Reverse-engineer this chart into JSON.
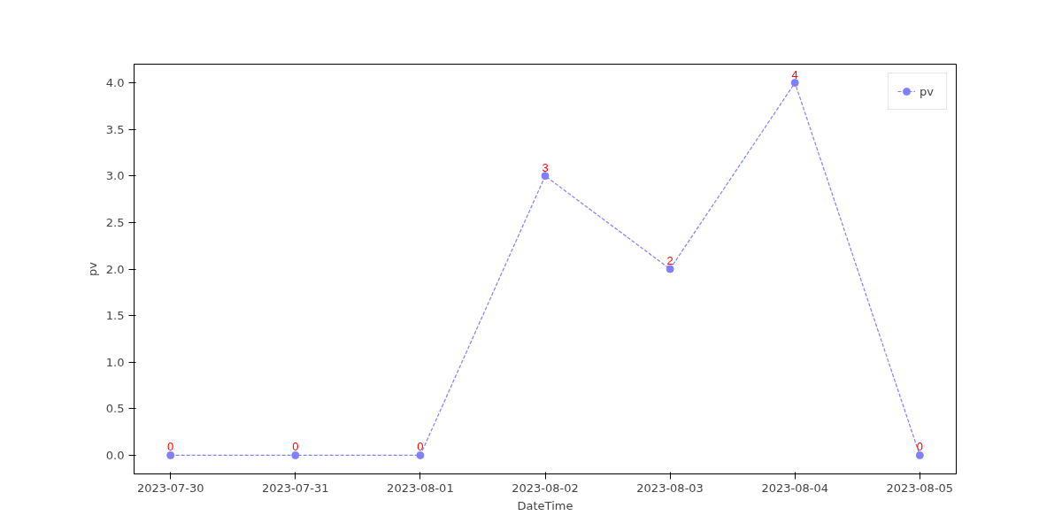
{
  "chart_data": {
    "type": "line",
    "xlabel": "DateTime",
    "ylabel": "pv",
    "x": [
      "2023-07-30",
      "2023-07-31",
      "2023-08-01",
      "2023-08-02",
      "2023-08-03",
      "2023-08-04",
      "2023-08-05"
    ],
    "series": [
      {
        "name": "pv",
        "color": "#7f7fff",
        "values": [
          0,
          0,
          0,
          3,
          2,
          4,
          0
        ]
      }
    ],
    "xlim": [
      "2023-07-29T17:00",
      "2023-08-05T07:00"
    ],
    "xticks": [
      "2023-07-30",
      "2023-07-31",
      "2023-08-01",
      "2023-08-02",
      "2023-08-03",
      "2023-08-04",
      "2023-08-05"
    ],
    "ylim": [
      -0.2,
      4.2
    ],
    "yticks": [
      {
        "value": 0,
        "label": "0.0"
      },
      {
        "value": 0.5,
        "label": "0.5"
      },
      {
        "value": 1,
        "label": "1.0"
      },
      {
        "value": 1.5,
        "label": "1.5"
      },
      {
        "value": 2,
        "label": "2.0"
      },
      {
        "value": 2.5,
        "label": "2.5"
      },
      {
        "value": 3,
        "label": "3.0"
      },
      {
        "value": 3.5,
        "label": "3.5"
      },
      {
        "value": 4,
        "label": "4.0"
      }
    ],
    "marker": "circle",
    "line_style": "dashed",
    "legend": "top right",
    "grid": false,
    "data_labels": true
  }
}
